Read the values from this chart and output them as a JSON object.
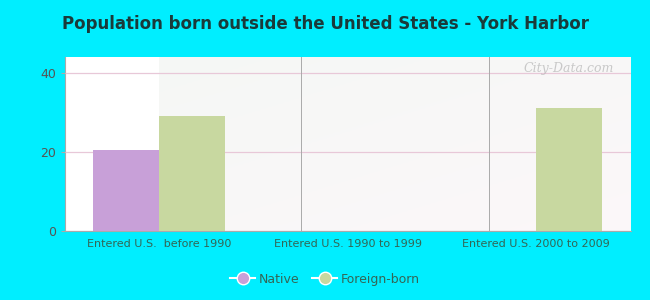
{
  "title": "Population born outside the United States - York Harbor",
  "groups": [
    "Entered U.S.  before 1990",
    "Entered U.S. 1990 to 1999",
    "Entered U.S. 2000 to 2009"
  ],
  "native_values": [
    20.5,
    0,
    0
  ],
  "foreign_values": [
    29.0,
    0,
    31.0
  ],
  "native_color": "#c8a0d8",
  "foreign_color": "#c8d8a0",
  "ylim": [
    0,
    44
  ],
  "yticks": [
    0,
    20,
    40
  ],
  "background_color": "#00eeff",
  "bar_width": 0.35,
  "legend_native": "Native",
  "legend_foreign": "Foreign-born",
  "watermark": "City-Data.com",
  "title_color": "#1a3a3a",
  "xlabel_color": "#336655",
  "ylabel_color": "#555555",
  "grid_color": "#e8c8d8",
  "separator_color": "#aaaaaa"
}
